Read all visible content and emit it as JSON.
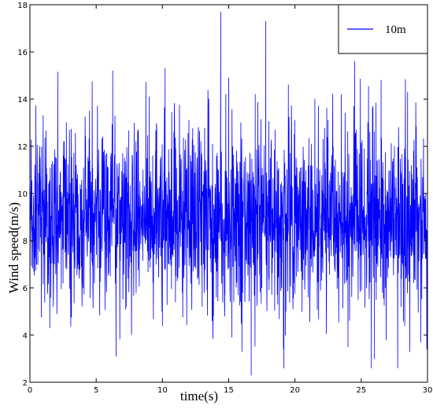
{
  "chart_data": {
    "type": "line",
    "xlabel": "time(s)",
    "ylabel": "Wind speed(m/s)",
    "xlim": [
      0,
      30
    ],
    "ylim": [
      2,
      18
    ],
    "x_ticks": [
      "0",
      "5",
      "10",
      "15",
      "20",
      "25",
      "30"
    ],
    "y_ticks": [
      "2",
      "4",
      "6",
      "8",
      "10",
      "12",
      "14",
      "16",
      "18"
    ],
    "grid": false,
    "legend_position": "top-right",
    "series": [
      {
        "name": "10m",
        "color": "#0000ff",
        "mean": 8.9,
        "std": 1.9,
        "x": [
          0.0,
          0.5,
          1.0,
          1.5,
          2.0,
          2.5,
          3.0,
          3.5,
          4.0,
          4.5,
          5.0,
          5.5,
          6.0,
          6.25,
          6.5,
          7.0,
          7.5,
          8.0,
          8.5,
          9.0,
          9.5,
          10.0,
          10.2,
          10.5,
          11.0,
          11.5,
          12.0,
          12.5,
          13.0,
          13.5,
          14.0,
          14.4,
          14.7,
          15.0,
          15.5,
          16.0,
          16.7,
          17.0,
          17.5,
          17.8,
          18.0,
          18.5,
          19.0,
          19.5,
          20.0,
          20.5,
          21.0,
          21.5,
          22.0,
          22.5,
          23.0,
          23.5,
          24.0,
          24.5,
          25.0,
          25.5,
          26.0,
          26.5,
          27.0,
          27.5,
          28.0,
          28.5,
          29.0,
          29.5,
          30.0
        ],
        "y": [
          10.5,
          7.0,
          13.3,
          4.3,
          11.5,
          6.2,
          9.5,
          11.2,
          6.0,
          13.5,
          8.6,
          12.4,
          7.5,
          15.2,
          3.1,
          11.7,
          6.9,
          12.2,
          7.6,
          14.1,
          8.1,
          4.4,
          15.3,
          7.0,
          11.9,
          5.8,
          13.1,
          9.4,
          5.2,
          14.0,
          7.1,
          17.7,
          4.8,
          14.9,
          9.0,
          3.3,
          2.3,
          14.2,
          6.0,
          17.3,
          9.5,
          12.7,
          6.0,
          14.6,
          8.2,
          11.1,
          5.6,
          14.0,
          9.2,
          13.1,
          6.8,
          14.2,
          3.5,
          15.6,
          7.9,
          13.0,
          3.0,
          14.8,
          7.6,
          12.0,
          5.2,
          14.3,
          8.5,
          3.7,
          6.1
        ]
      }
    ]
  }
}
